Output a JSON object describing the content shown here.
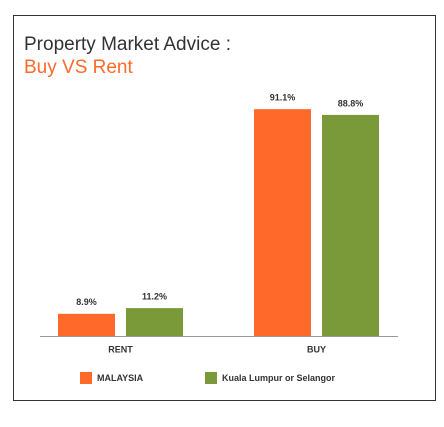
{
  "chart_data": {
    "type": "bar",
    "title": "Property Market Advice :",
    "subtitle": "Buy VS Rent",
    "categories": [
      "RENT",
      "BUY"
    ],
    "series": [
      {
        "name": "MALAYSIA",
        "color": "#ff6a2b",
        "values": [
          8.9,
          91.1
        ],
        "value_labels": [
          "8.9%",
          "91.1%"
        ]
      },
      {
        "name": "Kuala Lumpur or Selangor",
        "color": "#7a9a3a",
        "values": [
          11.2,
          88.8
        ],
        "value_labels": [
          "11.2%",
          "88.8%"
        ]
      }
    ],
    "ylim": [
      0,
      100
    ]
  }
}
